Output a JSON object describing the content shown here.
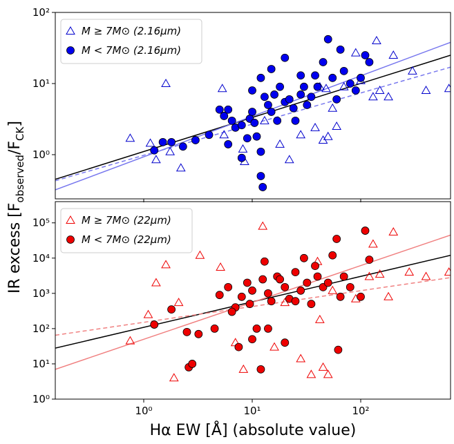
{
  "chart_data": [
    {
      "type": "scatter",
      "log_x": true,
      "log_y": true,
      "ylabel": [
        "IR excess [F",
        "observed",
        "/F",
        "CK",
        "]"
      ],
      "xlim": [
        0.153,
        673
      ],
      "ylim": [
        0.239,
        100
      ],
      "xticks": [
        1,
        10,
        100
      ],
      "yticks": [
        {
          "value": 1,
          "label": "10⁰"
        },
        {
          "value": 10,
          "label": "10¹"
        },
        {
          "value": 100,
          "label": "10²"
        }
      ],
      "legend": "upper left",
      "series": [
        {
          "name": "M ≥ 7M⊙ (2.16μm)",
          "marker": "triangle",
          "filled": false,
          "color": "#0000cc",
          "x": [
            0.75,
            1.15,
            1.3,
            1.6,
            1.75,
            2.2,
            5.3,
            5.5,
            8.2,
            8.5,
            13,
            18,
            22,
            28,
            38,
            42,
            45,
            48,
            50,
            55,
            60,
            70,
            90,
            100,
            130,
            140,
            200,
            300,
            400,
            650,
            180,
            150
          ],
          "values": [
            1.7,
            1.45,
            0.85,
            10,
            1.1,
            0.65,
            8.5,
            1.9,
            1.2,
            0.8,
            3,
            1.4,
            0.85,
            1.9,
            2.4,
            9,
            1.6,
            8.5,
            1.8,
            4.5,
            2.5,
            9,
            27,
            11,
            6.5,
            40,
            25,
            15,
            8,
            8.5,
            6.5,
            8
          ]
        },
        {
          "name": "M < 7M⊙ (2.16μm)",
          "marker": "circle",
          "filled": true,
          "color": "#0000ee",
          "x": [
            1.25,
            1.5,
            1.8,
            2.3,
            3,
            4,
            5,
            5.5,
            6,
            6.5,
            7,
            8,
            9,
            9.5,
            10,
            10.5,
            11,
            12,
            12.5,
            13,
            14,
            15,
            16,
            17,
            18,
            20,
            22,
            24,
            25,
            28,
            30,
            32,
            35,
            38,
            40,
            45,
            50,
            55,
            60,
            65,
            70,
            80,
            90,
            100,
            110,
            120,
            10,
            12,
            15,
            20,
            28,
            12,
            8,
            6
          ],
          "values": [
            1.15,
            1.5,
            1.5,
            1.3,
            1.6,
            1.9,
            4.3,
            3.5,
            4.3,
            3,
            2.4,
            2.6,
            1.7,
            3.2,
            4,
            2.8,
            1.8,
            0.5,
            0.35,
            6.5,
            5,
            4,
            7,
            3,
            9,
            5.5,
            6,
            4.5,
            3,
            7,
            9,
            5,
            6.5,
            13,
            9,
            20,
            42,
            12,
            6,
            30,
            15,
            10,
            8,
            12,
            25,
            20,
            8,
            12,
            16,
            23,
            13,
            1.1,
            0.9,
            1.4
          ]
        }
      ],
      "fits": [
        {
          "x": [
            0.153,
            673
          ],
          "y": [
            0.45,
            25
          ],
          "color": "#000000",
          "dash": false
        },
        {
          "x": [
            0.153,
            673
          ],
          "y": [
            0.32,
            38
          ],
          "color": "#7777ee",
          "dash": false
        },
        {
          "x": [
            0.153,
            673
          ],
          "y": [
            0.43,
            17
          ],
          "color": "#7777ee",
          "dash": true
        }
      ]
    },
    {
      "type": "scatter",
      "log_x": true,
      "log_y": true,
      "xlabel": "Hα EW [Å] (absolute value)",
      "xlim": [
        0.153,
        673
      ],
      "ylim": [
        1,
        400000
      ],
      "xticks": [
        {
          "value": 1,
          "label": "10⁰"
        },
        {
          "value": 10,
          "label": "10¹"
        },
        {
          "value": 100,
          "label": "10²"
        }
      ],
      "yticks": [
        {
          "value": 1,
          "label": "10⁰"
        },
        {
          "value": 10,
          "label": "10¹"
        },
        {
          "value": 100,
          "label": "10²"
        },
        {
          "value": 1000,
          "label": "10³"
        },
        {
          "value": 10000,
          "label": "10⁴"
        },
        {
          "value": 100000,
          "label": "10⁵"
        }
      ],
      "legend": "upper left",
      "series": [
        {
          "name": "M ≥ 7M⊙ (22μm)",
          "marker": "triangle",
          "filled": false,
          "color": "#ee0000",
          "x": [
            0.75,
            1.1,
            1.3,
            1.6,
            1.9,
            2.1,
            3.3,
            5.1,
            7,
            8.3,
            12.5,
            16,
            20,
            28,
            35,
            40,
            42,
            45,
            50,
            55,
            90,
            130,
            150,
            180,
            200,
            280,
            400,
            650,
            120
          ],
          "values": [
            45,
            250,
            2000,
            6500,
            4,
            550,
            12000,
            5500,
            40,
            7,
            80000,
            30,
            550,
            14,
            5,
            8000,
            180,
            8,
            5,
            1200,
            700,
            25000,
            3500,
            800,
            55000,
            4000,
            3000,
            4000,
            3000
          ]
        },
        {
          "name": "M < 7M⊙ (22μm)",
          "marker": "circle",
          "filled": true,
          "color": "#ee0000",
          "x": [
            1.25,
            1.8,
            2.5,
            2.6,
            2.8,
            3.2,
            4.5,
            5,
            6,
            7,
            7.5,
            8,
            9,
            9.5,
            10,
            10,
            11,
            12,
            12.5,
            13,
            14,
            15,
            17,
            20,
            22,
            25,
            28,
            30,
            32,
            35,
            40,
            45,
            50,
            55,
            60,
            62,
            65,
            70,
            80,
            100,
            110,
            120,
            20,
            14,
            6.5,
            25,
            38,
            18
          ],
          "values": [
            130,
            350,
            80,
            8,
            10,
            70,
            100,
            900,
            1500,
            400,
            30,
            800,
            2000,
            500,
            1200,
            50,
            100,
            7,
            2500,
            8000,
            1000,
            600,
            3000,
            1500,
            700,
            4000,
            1200,
            10000,
            2000,
            500,
            3000,
            1500,
            2000,
            12000,
            35000,
            25,
            800,
            3000,
            1500,
            800,
            60000,
            9000,
            40,
            100,
            300,
            600,
            6000,
            2500
          ]
        }
      ],
      "fits": [
        {
          "x": [
            0.153,
            673
          ],
          "y": [
            28,
            12000
          ],
          "color": "#000000",
          "dash": false
        },
        {
          "x": [
            0.153,
            673
          ],
          "y": [
            7,
            45000
          ],
          "color": "#f08080",
          "dash": false
        },
        {
          "x": [
            0.153,
            673
          ],
          "y": [
            65,
            2800
          ],
          "color": "#f08080",
          "dash": true
        }
      ]
    }
  ]
}
